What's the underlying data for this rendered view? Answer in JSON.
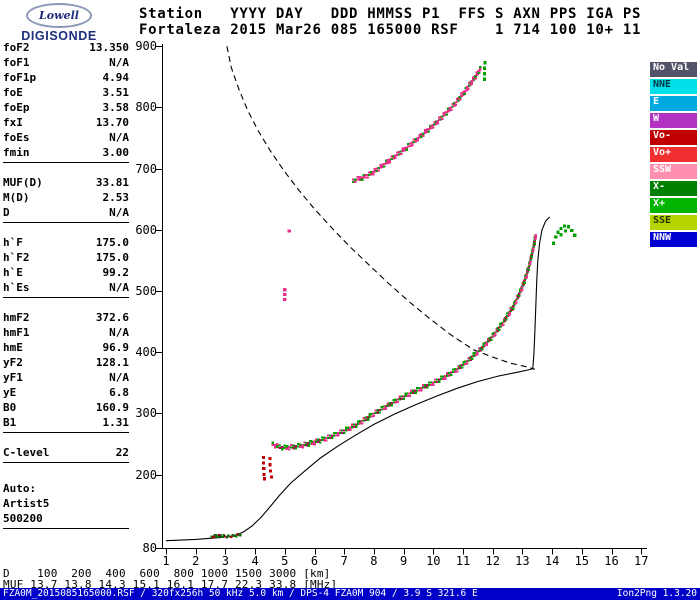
{
  "logo": {
    "top": "Lowell",
    "bottom": "DIGISONDE"
  },
  "header": {
    "line1": "Station   YYYY DAY   DDD HMMSS P1  FFS S AXN PPS IGA PS",
    "line2": "Fortaleza 2015 Mar26 085 165000 RSF    1 714 100 10+ 11"
  },
  "params": {
    "groups": [
      {
        "rows": [
          {
            "n": "foF2",
            "v": "13.350"
          },
          {
            "n": "foF1",
            "v": "N/A"
          },
          {
            "n": "foF1p",
            "v": "4.94"
          },
          {
            "n": "foE",
            "v": "3.51"
          },
          {
            "n": "foEp",
            "v": "3.58"
          },
          {
            "n": "fxI",
            "v": "13.70"
          },
          {
            "n": "foEs",
            "v": "N/A"
          },
          {
            "n": "fmin",
            "v": "3.00"
          }
        ]
      },
      {
        "rows": [
          {
            "n": "MUF(D)",
            "v": "33.81"
          },
          {
            "n": "M(D)",
            "v": "2.53"
          },
          {
            "n": "D",
            "v": "N/A"
          }
        ]
      },
      {
        "rows": [
          {
            "n": "h`F",
            "v": "175.0"
          },
          {
            "n": "h`F2",
            "v": "175.0"
          },
          {
            "n": "h`E",
            "v": "99.2"
          },
          {
            "n": "h`Es",
            "v": "N/A"
          }
        ]
      },
      {
        "rows": [
          {
            "n": "hmF2",
            "v": "372.6"
          },
          {
            "n": "hmF1",
            "v": "N/A"
          },
          {
            "n": "hmE",
            "v": "96.9"
          },
          {
            "n": "yF2",
            "v": "128.1"
          },
          {
            "n": "yF1",
            "v": "N/A"
          },
          {
            "n": "yE",
            "v": "6.8"
          },
          {
            "n": "B0",
            "v": "160.9"
          },
          {
            "n": "B1",
            "v": "1.31"
          }
        ]
      },
      {
        "rows": [
          {
            "n": "C-level",
            "v": "22"
          }
        ]
      },
      {
        "gap": true,
        "rows": [
          {
            "n": "Auto:",
            "v": ""
          },
          {
            "n": "Artist5",
            "v": ""
          },
          {
            "n": "500200",
            "v": ""
          }
        ]
      }
    ]
  },
  "legend": {
    "items": [
      {
        "label": "No Val",
        "bg": "#53536a",
        "fg": "#ffffff"
      },
      {
        "label": "NNE",
        "bg": "#00e0e8",
        "fg": "#003344"
      },
      {
        "label": "E",
        "bg": "#00a8e0",
        "fg": "#ffffff"
      },
      {
        "label": "W",
        "bg": "#b232c2",
        "fg": "#ffffff"
      },
      {
        "label": "Vo-",
        "bg": "#c00000",
        "fg": "#ffffff"
      },
      {
        "label": "Vo+",
        "bg": "#f03030",
        "fg": "#ffffff"
      },
      {
        "label": "SSW",
        "bg": "#ff8fae",
        "fg": "#ffffff"
      },
      {
        "label": "X-",
        "bg": "#008000",
        "fg": "#ffffff"
      },
      {
        "label": "X+",
        "bg": "#00b400",
        "fg": "#ffffff"
      },
      {
        "label": "SSE",
        "bg": "#b6d400",
        "fg": "#223300"
      },
      {
        "label": "NNW",
        "bg": "#0000d0",
        "fg": "#ffffff"
      }
    ]
  },
  "chart_data": {
    "type": "scatter",
    "title": "Digisonde ionogram, Fortaleza 2015 day 085 16:50:00",
    "x_axis": {
      "unit": "MHz",
      "min": 1,
      "max": 17,
      "ticks": [
        1,
        2,
        3,
        4,
        5,
        6,
        7,
        8,
        9,
        10,
        11,
        12,
        13,
        14,
        15,
        16,
        17
      ]
    },
    "y_axis": {
      "unit": "km",
      "min": 80,
      "max": 900,
      "ticks": [
        900,
        800,
        700,
        600,
        500,
        400,
        300,
        200,
        80
      ]
    },
    "curves": [
      {
        "name": "topside-model-profile",
        "style": "dashed",
        "color": "#000000",
        "points": [
          [
            3.05,
            900
          ],
          [
            3.2,
            865
          ],
          [
            3.45,
            830
          ],
          [
            3.75,
            795
          ],
          [
            4.1,
            762
          ],
          [
            4.5,
            730
          ],
          [
            4.95,
            698
          ],
          [
            5.45,
            666
          ],
          [
            6.0,
            634
          ],
          [
            6.6,
            602
          ],
          [
            7.2,
            572
          ],
          [
            7.85,
            542
          ],
          [
            8.5,
            512
          ],
          [
            9.2,
            482
          ],
          [
            9.9,
            454
          ],
          [
            10.6,
            428
          ],
          [
            11.35,
            404
          ],
          [
            12.0,
            392
          ],
          [
            12.6,
            382
          ],
          [
            13.05,
            377
          ],
          [
            13.3,
            374
          ],
          [
            13.42,
            372
          ]
        ]
      },
      {
        "name": "true-height-profile",
        "style": "solid",
        "color": "#000000",
        "points": [
          [
            1.0,
            92
          ],
          [
            2.0,
            94
          ],
          [
            2.8,
            97
          ],
          [
            3.3,
            100
          ],
          [
            3.6,
            106
          ],
          [
            3.9,
            116
          ],
          [
            4.2,
            130
          ],
          [
            4.5,
            147
          ],
          [
            4.8,
            165
          ],
          [
            5.2,
            186
          ],
          [
            5.7,
            207
          ],
          [
            6.2,
            227
          ],
          [
            6.8,
            247
          ],
          [
            7.4,
            265
          ],
          [
            8.0,
            282
          ],
          [
            8.7,
            299
          ],
          [
            9.4,
            314
          ],
          [
            10.1,
            328
          ],
          [
            10.8,
            341
          ],
          [
            11.5,
            352
          ],
          [
            12.2,
            361
          ],
          [
            12.8,
            367
          ],
          [
            13.2,
            371
          ],
          [
            13.35,
            373
          ]
        ]
      },
      {
        "name": "f2-cusp-fit",
        "style": "solid",
        "color": "#000000",
        "points": [
          [
            13.35,
            373
          ],
          [
            13.39,
            400
          ],
          [
            13.42,
            435
          ],
          [
            13.45,
            475
          ],
          [
            13.48,
            515
          ],
          [
            13.52,
            550
          ],
          [
            13.58,
            578
          ],
          [
            13.66,
            600
          ],
          [
            13.78,
            614
          ],
          [
            13.92,
            621
          ]
        ]
      }
    ],
    "traces": [
      {
        "name": "e-region-echoes",
        "mode": "line",
        "double": false,
        "step": 1.6,
        "colors": [
          "#007800",
          "#b00000",
          "#404040",
          "#007800"
        ],
        "points": [
          [
            2.55,
            99
          ],
          [
            2.7,
            100
          ],
          [
            2.85,
            100
          ],
          [
            3.0,
            99
          ],
          [
            3.15,
            99
          ],
          [
            3.3,
            100
          ],
          [
            3.42,
            101
          ],
          [
            3.55,
            103
          ]
        ]
      },
      {
        "name": "f-region-red-echoes",
        "mode": "scatter",
        "colors": [
          "#c00000"
        ],
        "points": [
          [
            4.28,
            228
          ],
          [
            4.28,
            219
          ],
          [
            4.29,
            210
          ],
          [
            4.3,
            200
          ],
          [
            4.32,
            193
          ],
          [
            4.5,
            226
          ],
          [
            4.5,
            216
          ],
          [
            4.52,
            206
          ],
          [
            4.55,
            196
          ]
        ]
      },
      {
        "name": "f2-trace-first-hop",
        "mode": "line",
        "double": true,
        "colors": [
          "#00a000",
          "#e8308a",
          "#e8308a",
          "#00a000",
          "#c00060",
          "#00a000"
        ],
        "points": [
          [
            4.6,
            252
          ],
          [
            4.75,
            248
          ],
          [
            5.0,
            246
          ],
          [
            5.3,
            247
          ],
          [
            5.6,
            250
          ],
          [
            6.0,
            255
          ],
          [
            6.4,
            261
          ],
          [
            6.8,
            269
          ],
          [
            7.2,
            278
          ],
          [
            7.6,
            289
          ],
          [
            8.0,
            301
          ],
          [
            8.4,
            313
          ],
          [
            8.8,
            324
          ],
          [
            9.2,
            334
          ],
          [
            9.6,
            343
          ],
          [
            10.0,
            352
          ],
          [
            10.4,
            362
          ],
          [
            10.8,
            374
          ],
          [
            11.2,
            389
          ],
          [
            11.6,
            407
          ],
          [
            12.0,
            428
          ],
          [
            12.35,
            450
          ],
          [
            12.65,
            473
          ],
          [
            12.9,
            497
          ],
          [
            13.1,
            522
          ],
          [
            13.25,
            547
          ],
          [
            13.37,
            572
          ],
          [
            13.46,
            596
          ]
        ]
      },
      {
        "name": "x-mode-cusp-echoes",
        "mode": "scatter",
        "colors": [
          "#00a000"
        ],
        "points": [
          [
            14.05,
            578
          ],
          [
            14.12,
            588
          ],
          [
            14.2,
            596
          ],
          [
            14.3,
            602
          ],
          [
            14.42,
            606
          ],
          [
            14.55,
            605
          ],
          [
            14.66,
            599
          ],
          [
            14.76,
            591
          ],
          [
            14.3,
            592
          ],
          [
            14.45,
            598
          ]
        ]
      },
      {
        "name": "second-hop-trace",
        "mode": "line",
        "double": true,
        "colors": [
          "#e8308a",
          "#00a000",
          "#e8308a",
          "#e8308a"
        ],
        "points": [
          [
            7.3,
            682
          ],
          [
            7.6,
            687
          ],
          [
            7.85,
            692
          ],
          [
            8.1,
            700
          ],
          [
            8.35,
            709
          ],
          [
            8.6,
            718
          ],
          [
            8.85,
            727
          ],
          [
            9.1,
            736
          ],
          [
            9.35,
            746
          ],
          [
            9.6,
            756
          ],
          [
            9.85,
            766
          ],
          [
            10.1,
            777
          ],
          [
            10.35,
            789
          ],
          [
            10.6,
            801
          ],
          [
            10.85,
            815
          ],
          [
            11.1,
            830
          ],
          [
            11.3,
            844
          ],
          [
            11.5,
            858
          ],
          [
            11.62,
            868
          ]
        ]
      },
      {
        "name": "second-hop-top-echoes",
        "mode": "scatter",
        "colors": [
          "#00a000"
        ],
        "points": [
          [
            11.72,
            846
          ],
          [
            11.72,
            855
          ],
          [
            11.72,
            864
          ],
          [
            11.74,
            873
          ]
        ]
      },
      {
        "name": "spread-pink-tick",
        "mode": "scatter",
        "colors": [
          "#e8308a"
        ],
        "points": [
          [
            5.0,
            486
          ],
          [
            5.0,
            494
          ],
          [
            5.0,
            502
          ]
        ]
      },
      {
        "name": "isolated-pink-dot",
        "mode": "scatter",
        "colors": [
          "#e8308a"
        ],
        "points": [
          [
            5.15,
            598
          ]
        ]
      }
    ],
    "muf_table": {
      "d_label": "D",
      "muf_label": "MUF",
      "d_unit": "[km]",
      "muf_unit": "[MHz]",
      "D_km": [
        100,
        200,
        400,
        600,
        800,
        1000,
        1500,
        3000
      ],
      "MUF_MHz": [
        13.7,
        13.8,
        14.3,
        15.1,
        16.1,
        17.7,
        22.3,
        33.8
      ]
    }
  },
  "bottom": {
    "d_line": "D    100  200  400  600  800 1000 1500 3000 [km]",
    "muf_line": "MUF 13.7 13.8 14.3 15.1 16.1 17.7 22.3 33.8 [MHz]"
  },
  "statusbar": {
    "left": "FZA0M_2015085165000.RSF / 320fx256h 50 kHz 5.0 km / DPS-4 FZA0M 904 / 3.9 S 321.6 E",
    "right": "Ion2Png 1.3.20",
    "bg": "#0000c8"
  }
}
